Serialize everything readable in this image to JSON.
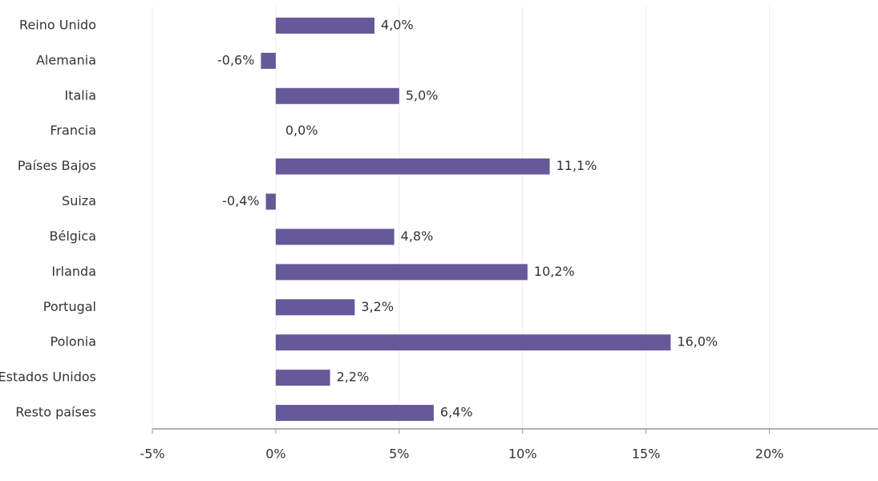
{
  "chart_data": {
    "type": "barh",
    "categories": [
      "Reino Unido",
      "Alemania",
      "Italia",
      "Francia",
      "Países Bajos",
      "Suiza",
      "Bélgica",
      "Irlanda",
      "Portugal",
      "Polonia",
      "Estados Unidos",
      "Resto países"
    ],
    "values": [
      4.0,
      -0.6,
      5.0,
      0.0,
      11.1,
      -0.4,
      4.8,
      10.2,
      3.2,
      16.0,
      2.2,
      6.4
    ],
    "value_labels": [
      "4,0%",
      "-0,6%",
      "5,0%",
      "0,0%",
      "11,1%",
      "-0,4%",
      "4,8%",
      "10,2%",
      "3,2%",
      "16,0%",
      "2,2%",
      "6,4%"
    ],
    "color": "#65599a",
    "xlim": [
      -5,
      24.4
    ],
    "xticks": [
      {
        "value": -5,
        "label": "-5%"
      },
      {
        "value": 0,
        "label": "0%"
      },
      {
        "value": 5,
        "label": "5%"
      },
      {
        "value": 10,
        "label": "10%"
      },
      {
        "value": 15,
        "label": "15%"
      },
      {
        "value": 20,
        "label": "20%"
      }
    ],
    "grid": true
  }
}
